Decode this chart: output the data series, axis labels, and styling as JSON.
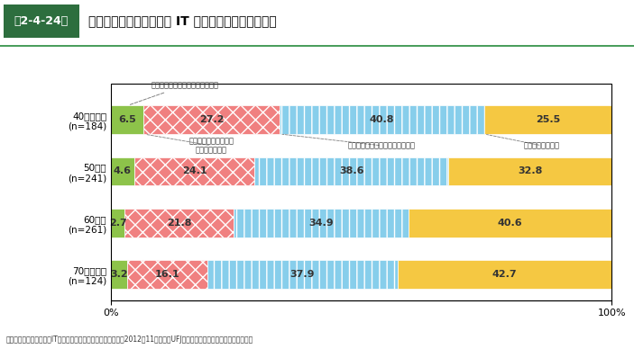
{
  "title": "第2-4-24図　小規模事業者の年齢別の IT の導入・活用の位置付け",
  "title_label": "第2-4-24図",
  "title_main": "小規模事業者の年齢別の IT の導入・活用の位置付け",
  "categories": [
    "40歳代以下\n(n=184)",
    "50歳代\n(n=241)",
    "60歳代\n(n=261)",
    "70歳代以上\n(n=124)"
  ],
  "data": [
    [
      6.5,
      27.2,
      40.8,
      25.5
    ],
    [
      4.6,
      24.1,
      38.6,
      32.8
    ],
    [
      2.7,
      21.8,
      34.9,
      40.6
    ],
    [
      3.2,
      16.1,
      37.9,
      42.7
    ]
  ],
  "colors": [
    "#8dc34a",
    "#f08080",
    "#87ceeb",
    "#f5c842"
  ],
  "hatch_patterns": [
    "",
    "xx",
    "||",
    "="
  ],
  "legend_labels": [
    "最重要課題として位置付けている",
    "重要課題の一つとして\n位置付けている",
    "課題の一つとして位置付けている",
    "経営課題ではない"
  ],
  "annotation_labels": [
    "最重要課題として位置付けている",
    "重要課題の一つとして\n位置付けている",
    "課題の一つとして位置付けている",
    "経営課題ではない"
  ],
  "source": "資料：中小企業庁委託「ITの活用に関するアンケート調査」（2012年11月、三菱UFJリサーチ＆コンサルティング（株））",
  "background_color": "#ffffff",
  "header_bg": "#2d6e3e",
  "header_label_bg": "#4a9e5c"
}
